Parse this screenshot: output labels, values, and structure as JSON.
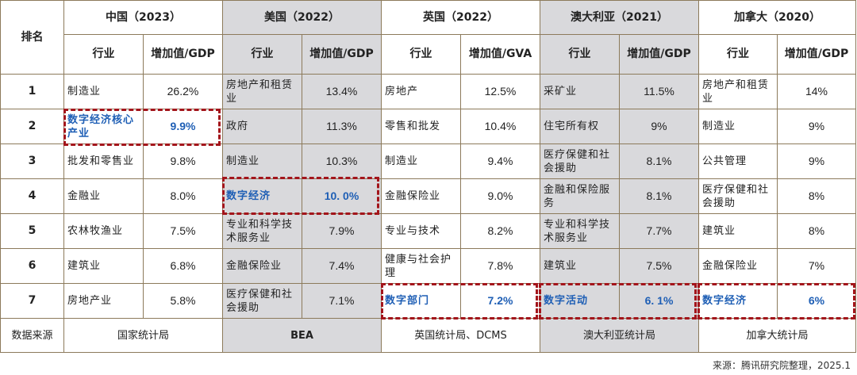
{
  "header": {
    "rank_label": "排名",
    "countries": [
      {
        "name": "中国（2023）",
        "industry_label": "行业",
        "value_label": "增加值/GDP"
      },
      {
        "name": "美国（2022）",
        "industry_label": "行业",
        "value_label": "增加值/GDP"
      },
      {
        "name": "英国（2022）",
        "industry_label": "行业",
        "value_label": "增加值/GVA"
      },
      {
        "name": "澳大利亚（2021）",
        "industry_label": "行业",
        "value_label": "增加值/GDP"
      },
      {
        "name": "加拿大（2020）",
        "industry_label": "行业",
        "value_label": "增加值/GDP"
      }
    ]
  },
  "rows": [
    {
      "rank": "1",
      "cells": [
        {
          "industry": "制造业",
          "value": "26.2%"
        },
        {
          "industry": "房地产和租赁业",
          "value": "13.4%"
        },
        {
          "industry": "房地产",
          "value": "12.5%"
        },
        {
          "industry": "采矿业",
          "value": "11.5%"
        },
        {
          "industry": "房地产和租赁业",
          "value": "14%"
        }
      ]
    },
    {
      "rank": "2",
      "cells": [
        {
          "industry": "数字经济核心产业",
          "value": "9.9%"
        },
        {
          "industry": "政府",
          "value": "11.3%"
        },
        {
          "industry": "零售和批发",
          "value": "10.4%"
        },
        {
          "industry": "住宅所有权",
          "value": "9%"
        },
        {
          "industry": "制造业",
          "value": "9%"
        }
      ]
    },
    {
      "rank": "3",
      "cells": [
        {
          "industry": "批发和零售业",
          "value": "9.8%"
        },
        {
          "industry": "制造业",
          "value": "10.3%"
        },
        {
          "industry": "制造业",
          "value": "9.4%"
        },
        {
          "industry": "医疗保健和社会援助",
          "value": "8.1%"
        },
        {
          "industry": "公共管理",
          "value": "9%"
        }
      ]
    },
    {
      "rank": "4",
      "cells": [
        {
          "industry": "金融业",
          "value": "8.0%"
        },
        {
          "industry": "数字经济",
          "value": "10. 0%"
        },
        {
          "industry": "金融保险业",
          "value": "9.0%"
        },
        {
          "industry": "金融和保险服务",
          "value": "8.1%"
        },
        {
          "industry": "医疗保健和社会援助",
          "value": "8%"
        }
      ]
    },
    {
      "rank": "5",
      "cells": [
        {
          "industry": "农林牧渔业",
          "value": "7.5%"
        },
        {
          "industry": "专业和科学技术服务业",
          "value": "7.9%"
        },
        {
          "industry": "专业与技术",
          "value": "8.2%"
        },
        {
          "industry": "专业和科学技术服务业",
          "value": "7.7%"
        },
        {
          "industry": "建筑业",
          "value": "8%"
        }
      ]
    },
    {
      "rank": "6",
      "cells": [
        {
          "industry": "建筑业",
          "value": "6.8%"
        },
        {
          "industry": "金融保险业",
          "value": "7.4%"
        },
        {
          "industry": "健康与社会护理",
          "value": "7.8%"
        },
        {
          "industry": "建筑业",
          "value": "7.5%"
        },
        {
          "industry": "金融保险业",
          "value": "7%"
        }
      ]
    },
    {
      "rank": "7",
      "cells": [
        {
          "industry": "房地产业",
          "value": "5.8%"
        },
        {
          "industry": "医疗保健和社会援助",
          "value": "7.1%"
        },
        {
          "industry": "数字部门",
          "value": "7.2%"
        },
        {
          "industry": "数字活动",
          "value": "6. 1%"
        },
        {
          "industry": "数字经济",
          "value": "6%"
        }
      ]
    }
  ],
  "sources": {
    "label": "数据来源",
    "values": [
      "国家统计局",
      "BEA",
      "英国统计局、DCMS",
      "澳大利亚统计局",
      "加拿大统计局"
    ]
  },
  "footer_note": "来源：腾讯研究院整理，2025.1",
  "colors": {
    "highlight_text": "#1f5fb5",
    "highlight_border": "#a3151b",
    "gray_column": "#d9d9dc",
    "grid_line": "#8c7a5b"
  }
}
